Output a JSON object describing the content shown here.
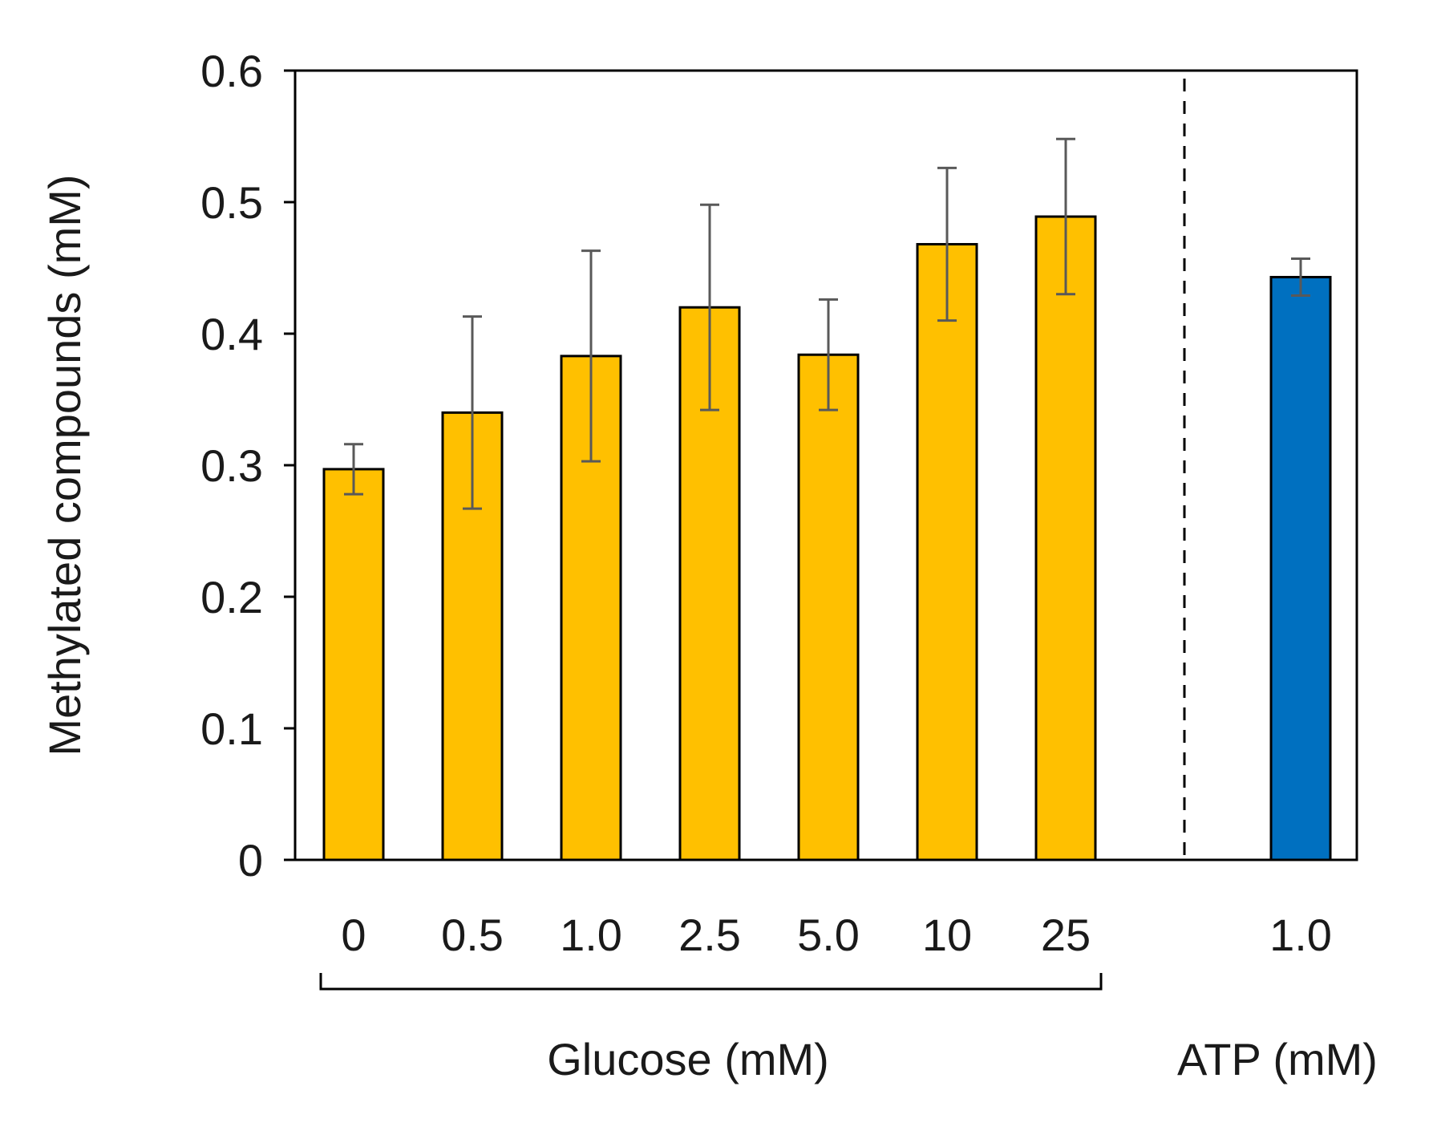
{
  "chart_data": {
    "type": "bar",
    "title": "",
    "ylabel": "Methylated compounds (mM)",
    "ylim": [
      0,
      0.6
    ],
    "yticks": [
      "0",
      "0.1",
      "0.2",
      "0.3",
      "0.4",
      "0.5",
      "0.6"
    ],
    "grid": false,
    "groups": [
      {
        "name": "Glucose (mM)",
        "color": "#FFC000",
        "categories": [
          "0",
          "0.5",
          "1.0",
          "2.5",
          "5.0",
          "10",
          "25"
        ],
        "values": [
          0.297,
          0.34,
          0.383,
          0.42,
          0.384,
          0.468,
          0.489
        ],
        "errors": [
          0.019,
          0.073,
          0.08,
          0.078,
          0.042,
          0.058,
          0.059
        ]
      },
      {
        "name": "ATP (mM)",
        "color": "#0070C0",
        "categories": [
          "1.0"
        ],
        "values": [
          0.443
        ],
        "errors": [
          0.014
        ]
      }
    ],
    "separator": "dashed vertical line between Glucose and ATP groups"
  }
}
